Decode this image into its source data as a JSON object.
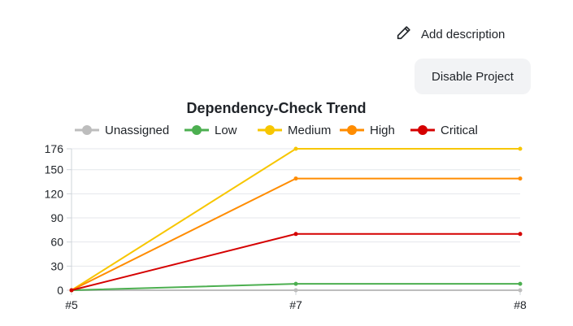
{
  "header": {
    "add_description_label": "Add description",
    "disable_project_label": "Disable Project"
  },
  "icons": {
    "edit": "pencil-icon"
  },
  "chart_data": {
    "type": "line",
    "title": "Dependency-Check Trend",
    "categories": [
      "#5",
      "#7",
      "#8"
    ],
    "yticks": [
      "0",
      "30",
      "60",
      "90",
      "120",
      "150",
      "176"
    ],
    "ylim": [
      0,
      176
    ],
    "grid": true,
    "legend_position": "top",
    "series": [
      {
        "name": "Unassigned",
        "color": "#bdbdbd",
        "values": [
          0,
          0,
          0
        ]
      },
      {
        "name": "Low",
        "color": "#4caf50",
        "values": [
          0,
          8,
          8
        ]
      },
      {
        "name": "Medium",
        "color": "#f7c600",
        "values": [
          0,
          176,
          176
        ]
      },
      {
        "name": "High",
        "color": "#ff8c00",
        "values": [
          0,
          139,
          139
        ]
      },
      {
        "name": "Critical",
        "color": "#d50000",
        "values": [
          0,
          70,
          70
        ]
      }
    ]
  }
}
